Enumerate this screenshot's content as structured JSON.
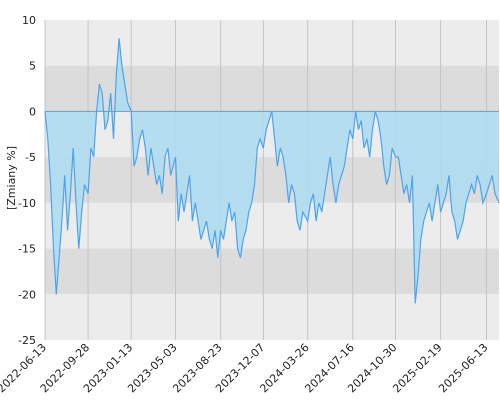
{
  "chart_data": {
    "type": "area",
    "title": "",
    "xlabel": "",
    "ylabel": "[Zmiany %]",
    "ylim": [
      -25,
      10
    ],
    "y_ticks": [
      10,
      5,
      0,
      -5,
      -10,
      -15,
      -20,
      -25
    ],
    "x_range": [
      "2022-06-13",
      "2025-07-14"
    ],
    "x_ticks": [
      "2022-06-13",
      "2022-09-28",
      "2023-01-13",
      "2023-05-03",
      "2023-08-23",
      "2023-12-07",
      "2024-03-26",
      "2024-07-16",
      "2024-10-30",
      "2025-02-19",
      "2025-06-13"
    ],
    "grid": true,
    "legend": "none",
    "colors": {
      "line": "#4da3ee",
      "fill": "#aedcf0",
      "band_dark": "#dcdcdc",
      "band_light": "#ececec",
      "zero_line": "#4da3ee",
      "vgrid": "#c4c4c4"
    },
    "series": [
      {
        "x": [
          "2022-06-13",
          "2022-06-20",
          "2022-06-27",
          "2022-07-04",
          "2022-07-11",
          "2022-07-18",
          "2022-07-25",
          "2022-08-01",
          "2022-08-08",
          "2022-08-15",
          "2022-08-22",
          "2022-08-29",
          "2022-09-05",
          "2022-09-12",
          "2022-09-19",
          "2022-09-28",
          "2022-10-05",
          "2022-10-12",
          "2022-10-19",
          "2022-10-26",
          "2022-11-02",
          "2022-11-09",
          "2022-11-16",
          "2022-11-23",
          "2022-11-30",
          "2022-12-07",
          "2022-12-14",
          "2022-12-21",
          "2022-12-28",
          "2023-01-04",
          "2023-01-13",
          "2023-01-20",
          "2023-01-27",
          "2023-02-03",
          "2023-02-10",
          "2023-02-17",
          "2023-02-24",
          "2023-03-03",
          "2023-03-10",
          "2023-03-17",
          "2023-03-24",
          "2023-03-31",
          "2023-04-07",
          "2023-04-14",
          "2023-04-21",
          "2023-05-03",
          "2023-05-10",
          "2023-05-17",
          "2023-05-24",
          "2023-05-31",
          "2023-06-07",
          "2023-06-14",
          "2023-06-21",
          "2023-06-28",
          "2023-07-05",
          "2023-07-12",
          "2023-07-19",
          "2023-07-26",
          "2023-08-02",
          "2023-08-09",
          "2023-08-16",
          "2023-08-23",
          "2023-08-30",
          "2023-09-06",
          "2023-09-13",
          "2023-09-20",
          "2023-09-27",
          "2023-10-04",
          "2023-10-11",
          "2023-10-18",
          "2023-10-25",
          "2023-11-01",
          "2023-11-08",
          "2023-11-15",
          "2023-11-22",
          "2023-11-29",
          "2023-12-07",
          "2023-12-14",
          "2023-12-21",
          "2023-12-28",
          "2024-01-04",
          "2024-01-11",
          "2024-01-18",
          "2024-01-25",
          "2024-02-01",
          "2024-02-08",
          "2024-02-15",
          "2024-02-22",
          "2024-02-29",
          "2024-03-07",
          "2024-03-14",
          "2024-03-26",
          "2024-04-02",
          "2024-04-09",
          "2024-04-16",
          "2024-04-23",
          "2024-04-30",
          "2024-05-07",
          "2024-05-14",
          "2024-05-21",
          "2024-05-28",
          "2024-06-04",
          "2024-06-11",
          "2024-06-18",
          "2024-06-25",
          "2024-07-02",
          "2024-07-09",
          "2024-07-16",
          "2024-07-23",
          "2024-07-30",
          "2024-08-06",
          "2024-08-13",
          "2024-08-20",
          "2024-08-27",
          "2024-09-03",
          "2024-09-10",
          "2024-09-17",
          "2024-09-24",
          "2024-10-01",
          "2024-10-08",
          "2024-10-15",
          "2024-10-22",
          "2024-10-30",
          "2024-11-06",
          "2024-11-13",
          "2024-11-20",
          "2024-11-27",
          "2024-12-04",
          "2024-12-11",
          "2024-12-18",
          "2024-12-25",
          "2025-01-01",
          "2025-01-08",
          "2025-01-15",
          "2025-01-22",
          "2025-01-29",
          "2025-02-05",
          "2025-02-12",
          "2025-02-19",
          "2025-02-26",
          "2025-03-05",
          "2025-03-12",
          "2025-03-19",
          "2025-03-26",
          "2025-04-02",
          "2025-04-09",
          "2025-04-16",
          "2025-04-23",
          "2025-04-30",
          "2025-05-07",
          "2025-05-14",
          "2025-05-21",
          "2025-05-28",
          "2025-06-04",
          "2025-06-13",
          "2025-06-20",
          "2025-06-27",
          "2025-07-04",
          "2025-07-14"
        ],
        "y": [
          0,
          -3,
          -8,
          -15,
          -20,
          -16,
          -12,
          -7,
          -13,
          -9,
          -4,
          -10,
          -15,
          -11,
          -8,
          -9,
          -4,
          -5,
          0,
          3,
          2,
          -2,
          -1,
          2,
          -3,
          4,
          8,
          5,
          3,
          1,
          0,
          -6,
          -5,
          -3,
          -2,
          -4,
          -7,
          -4,
          -6,
          -8,
          -7,
          -9,
          -5,
          -4,
          -7,
          -5,
          -12,
          -9,
          -11,
          -9,
          -7,
          -12,
          -10,
          -12,
          -14,
          -13,
          -12,
          -14,
          -15,
          -13,
          -16,
          -13,
          -14,
          -12,
          -10,
          -12,
          -11,
          -15,
          -16,
          -14,
          -13,
          -11,
          -10,
          -8,
          -4,
          -3,
          -4,
          -2,
          -1,
          0,
          -3,
          -6,
          -4,
          -5,
          -7,
          -10,
          -8,
          -9,
          -12,
          -13,
          -11,
          -12,
          -10,
          -9,
          -12,
          -10,
          -11,
          -9,
          -7,
          -5,
          -8,
          -10,
          -8,
          -7,
          -6,
          -4,
          -2,
          -3,
          0,
          -2,
          -1,
          -4,
          -3,
          -5,
          -2,
          0,
          -1,
          -3,
          -6,
          -8,
          -7,
          -4,
          -5,
          -5,
          -7,
          -9,
          -8,
          -10,
          -7,
          -21,
          -18,
          -14,
          -12,
          -11,
          -10,
          -12,
          -10,
          -8,
          -11,
          -10,
          -9,
          -7,
          -11,
          -12,
          -14,
          -13,
          -12,
          -10,
          -9,
          -8,
          -9,
          -7,
          -8,
          -10,
          -9,
          -8,
          -7,
          -9,
          -10
        ]
      }
    ]
  }
}
